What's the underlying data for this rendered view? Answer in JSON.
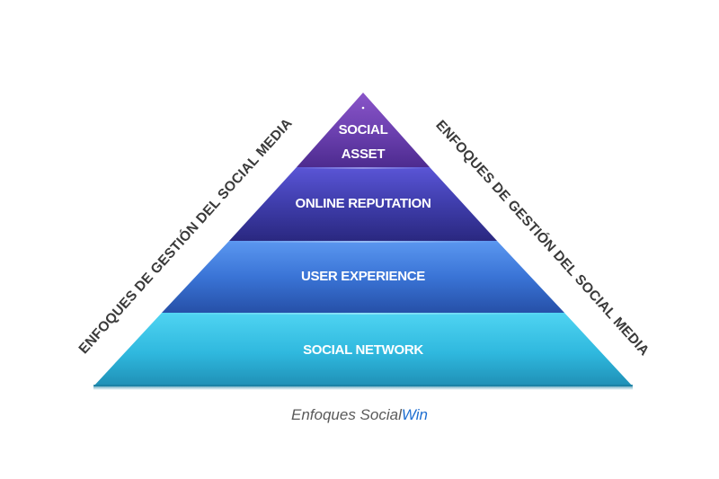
{
  "pyramid": {
    "layers": [
      {
        "id": "social-asset",
        "lines": [
          "SOCIAL",
          "ASSET"
        ]
      },
      {
        "id": "online-reputation",
        "lines": [
          "ONLINE REPUTATION"
        ]
      },
      {
        "id": "user-experience",
        "lines": [
          "USER EXPERIENCE"
        ]
      },
      {
        "id": "social-network",
        "lines": [
          "SOCIAL NETWORK"
        ]
      }
    ],
    "colors": {
      "social_asset": "#6a3fae",
      "online_reputation": "#3f3dab",
      "user_experience": "#3a74d6",
      "social_network": "#2fb8de"
    }
  },
  "side_labels": {
    "left": "ENFOQUES DE GESTIÓN DEL  SOCIAL MEDIA",
    "right": "ENFOQUES DE GESTIÓN DEL SOCIAL MEDIA"
  },
  "caption": {
    "text": "Enfoques Social",
    "brand": "Win",
    "brand_color": "#1f6fd1"
  }
}
